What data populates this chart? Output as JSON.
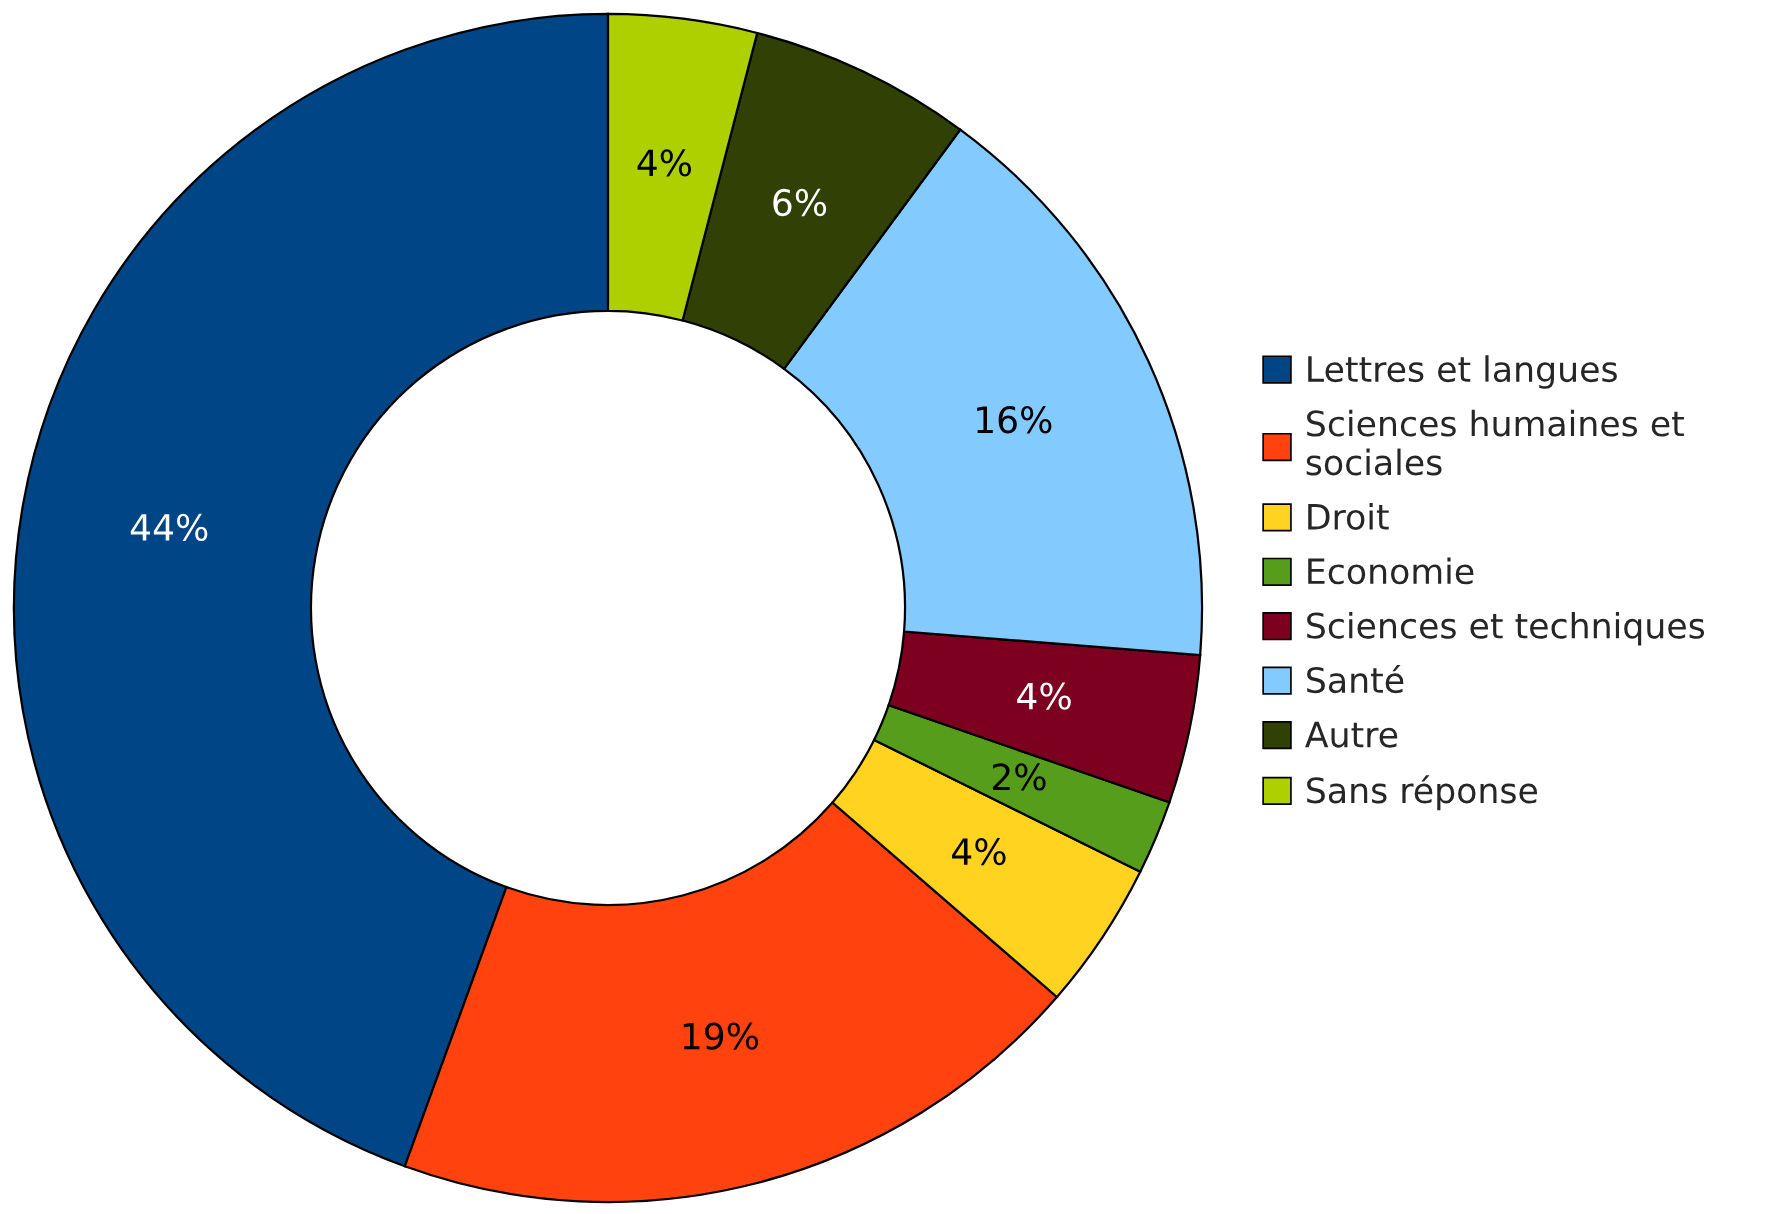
{
  "chart_data": {
    "type": "donut",
    "categories": [
      "Lettres et langues",
      "Sciences humaines et sociales",
      "Droit",
      "Economie",
      "Sciences et techniques",
      "Santé",
      "Autre",
      "Sans réponse"
    ],
    "values": [
      44,
      19,
      4,
      2,
      4,
      16,
      6,
      4
    ],
    "value_labels": [
      "44%",
      "19%",
      "4%",
      "2%",
      "4%",
      "16%",
      "6%",
      "4%"
    ],
    "colors": [
      "#004586",
      "#ff420e",
      "#ffd320",
      "#579d1c",
      "#7e0021",
      "#83caff",
      "#314004",
      "#aecf00"
    ],
    "legend": "right"
  }
}
